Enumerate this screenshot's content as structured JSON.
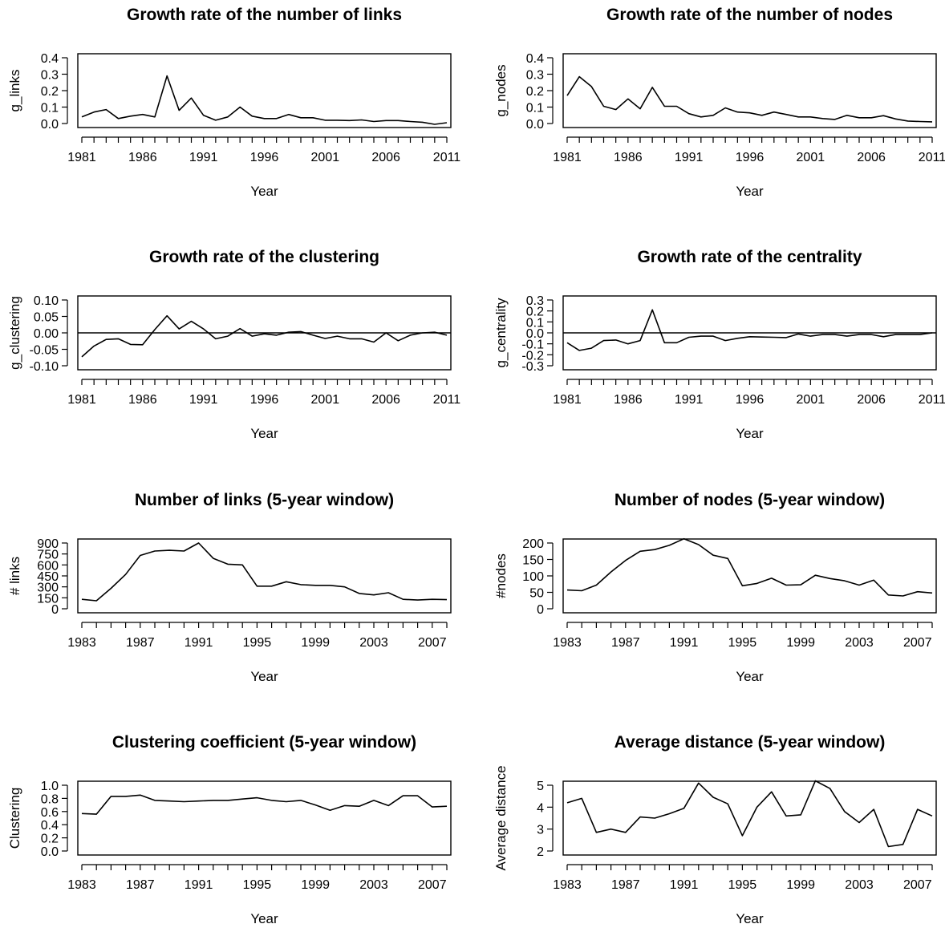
{
  "colors": {
    "line": "#000000",
    "background": "#ffffff"
  },
  "chart_data": [
    {
      "type": "line",
      "title": "Growth rate of the number of links",
      "xlabel": "Year",
      "ylabel": "g_links",
      "x": [
        1981,
        1982,
        1983,
        1984,
        1985,
        1986,
        1987,
        1988,
        1989,
        1990,
        1991,
        1992,
        1993,
        1994,
        1995,
        1996,
        1997,
        1998,
        1999,
        2000,
        2001,
        2002,
        2003,
        2004,
        2005,
        2006,
        2007,
        2008,
        2009,
        2010,
        2011
      ],
      "values": [
        0.04,
        0.07,
        0.085,
        0.03,
        0.045,
        0.055,
        0.04,
        0.29,
        0.08,
        0.155,
        0.05,
        0.02,
        0.04,
        0.1,
        0.045,
        0.03,
        0.03,
        0.055,
        0.035,
        0.035,
        0.02,
        0.02,
        0.018,
        0.022,
        0.012,
        0.018,
        0.018,
        0.012,
        0.008,
        -0.005,
        0.005
      ],
      "xlim": [
        1981,
        2011
      ],
      "ylim": [
        0.0,
        0.4
      ],
      "xticks": [
        "1981",
        "1986",
        "1991",
        "1996",
        "2001",
        "2006",
        "2011"
      ],
      "xtick_values": [
        1981,
        1986,
        1991,
        1996,
        2001,
        2006,
        2011
      ],
      "yticks": [
        "0.0",
        "0.1",
        "0.2",
        "0.3",
        "0.4"
      ],
      "ytick_values": [
        0.0,
        0.1,
        0.2,
        0.3,
        0.4
      ],
      "zero_line": false,
      "grid": false
    },
    {
      "type": "line",
      "title": "Growth rate of the number of nodes",
      "xlabel": "Year",
      "ylabel": "g_nodes",
      "x": [
        1981,
        1982,
        1983,
        1984,
        1985,
        1986,
        1987,
        1988,
        1989,
        1990,
        1991,
        1992,
        1993,
        1994,
        1995,
        1996,
        1997,
        1998,
        1999,
        2000,
        2001,
        2002,
        2003,
        2004,
        2005,
        2006,
        2007,
        2008,
        2009,
        2010,
        2011
      ],
      "values": [
        0.17,
        0.285,
        0.225,
        0.105,
        0.085,
        0.15,
        0.09,
        0.22,
        0.105,
        0.105,
        0.06,
        0.04,
        0.05,
        0.095,
        0.07,
        0.065,
        0.05,
        0.07,
        0.055,
        0.04,
        0.04,
        0.03,
        0.025,
        0.05,
        0.035,
        0.035,
        0.048,
        0.028,
        0.015,
        0.012,
        0.01
      ],
      "xlim": [
        1981,
        2011
      ],
      "ylim": [
        0.0,
        0.4
      ],
      "xticks": [
        "1981",
        "1986",
        "1991",
        "1996",
        "2001",
        "2006",
        "2011"
      ],
      "xtick_values": [
        1981,
        1986,
        1991,
        1996,
        2001,
        2006,
        2011
      ],
      "yticks": [
        "0.0",
        "0.1",
        "0.2",
        "0.3",
        "0.4"
      ],
      "ytick_values": [
        0.0,
        0.1,
        0.2,
        0.3,
        0.4
      ],
      "zero_line": false,
      "grid": false
    },
    {
      "type": "line",
      "title": "Growth rate of the clustering",
      "xlabel": "Year",
      "ylabel": "g_clustering",
      "x": [
        1981,
        1982,
        1983,
        1984,
        1985,
        1986,
        1987,
        1988,
        1989,
        1990,
        1991,
        1992,
        1993,
        1994,
        1995,
        1996,
        1997,
        1998,
        1999,
        2000,
        2001,
        2002,
        2003,
        2004,
        2005,
        2006,
        2007,
        2008,
        2009,
        2010,
        2011
      ],
      "values": [
        -0.073,
        -0.04,
        -0.02,
        -0.018,
        -0.035,
        -0.036,
        0.01,
        0.052,
        0.012,
        0.035,
        0.012,
        -0.018,
        -0.01,
        0.013,
        -0.01,
        -0.003,
        -0.007,
        0.002,
        0.004,
        -0.007,
        -0.017,
        -0.01,
        -0.018,
        -0.018,
        -0.028,
        0.0,
        -0.024,
        -0.007,
        0.0,
        0.002,
        -0.007
      ],
      "xlim": [
        1981,
        2011
      ],
      "ylim": [
        -0.1,
        0.1
      ],
      "xticks": [
        "1981",
        "1986",
        "1991",
        "1996",
        "2001",
        "2006",
        "2011"
      ],
      "xtick_values": [
        1981,
        1986,
        1991,
        1996,
        2001,
        2006,
        2011
      ],
      "yticks": [
        "-0.10",
        "-0.05",
        "0.00",
        "0.05",
        "0.10"
      ],
      "ytick_values": [
        -0.1,
        -0.05,
        0.0,
        0.05,
        0.1
      ],
      "zero_line": true,
      "grid": false
    },
    {
      "type": "line",
      "title": "Growth rate of the centrality",
      "xlabel": "Year",
      "ylabel": "g_centrality",
      "x": [
        1981,
        1982,
        1983,
        1984,
        1985,
        1986,
        1987,
        1988,
        1989,
        1990,
        1991,
        1992,
        1993,
        1994,
        1995,
        1996,
        1997,
        1998,
        1999,
        2000,
        2001,
        2002,
        2003,
        2004,
        2005,
        2006,
        2007,
        2008,
        2009,
        2010,
        2011
      ],
      "values": [
        -0.09,
        -0.16,
        -0.14,
        -0.07,
        -0.065,
        -0.1,
        -0.07,
        0.21,
        -0.09,
        -0.09,
        -0.04,
        -0.03,
        -0.03,
        -0.07,
        -0.05,
        -0.035,
        -0.038,
        -0.04,
        -0.043,
        -0.01,
        -0.03,
        -0.015,
        -0.015,
        -0.03,
        -0.015,
        -0.015,
        -0.035,
        -0.015,
        -0.015,
        -0.015,
        0.0
      ],
      "xlim": [
        1981,
        2011
      ],
      "ylim": [
        -0.3,
        0.3
      ],
      "xticks": [
        "1981",
        "1986",
        "1991",
        "1996",
        "2001",
        "2006",
        "2011"
      ],
      "xtick_values": [
        1981,
        1986,
        1991,
        1996,
        2001,
        2006,
        2011
      ],
      "yticks": [
        "-0.3",
        "-0.2",
        "-0.1",
        "0.0",
        "0.1",
        "0.2",
        "0.3"
      ],
      "ytick_values": [
        -0.3,
        -0.2,
        -0.1,
        0.0,
        0.1,
        0.2,
        0.3
      ],
      "zero_line": true,
      "grid": false
    },
    {
      "type": "line",
      "title": "Number of links (5-year window)",
      "xlabel": "Year",
      "ylabel": "# links",
      "x": [
        1983,
        1984,
        1985,
        1986,
        1987,
        1988,
        1989,
        1990,
        1991,
        1992,
        1993,
        1994,
        1995,
        1996,
        1997,
        1998,
        1999,
        2000,
        2001,
        2002,
        2003,
        2004,
        2005,
        2006,
        2007,
        2008
      ],
      "values": [
        130,
        110,
        280,
        470,
        730,
        790,
        800,
        790,
        900,
        690,
        610,
        600,
        310,
        310,
        370,
        330,
        320,
        320,
        300,
        210,
        190,
        220,
        130,
        120,
        130,
        125
      ],
      "xlim": [
        1983,
        2008
      ],
      "ylim": [
        0,
        900
      ],
      "xticks": [
        "1983",
        "1987",
        "1991",
        "1995",
        "1999",
        "2003",
        "2007"
      ],
      "xtick_values": [
        1983,
        1987,
        1991,
        1995,
        1999,
        2003,
        2007
      ],
      "yticks": [
        "0",
        "150",
        "300",
        "450",
        "600",
        "750",
        "900"
      ],
      "ytick_values": [
        0,
        150,
        300,
        450,
        600,
        750,
        900
      ],
      "zero_line": false,
      "grid": false
    },
    {
      "type": "line",
      "title": "Number of nodes (5-year window)",
      "xlabel": "Year",
      "ylabel": "#nodes",
      "x": [
        1983,
        1984,
        1985,
        1986,
        1987,
        1988,
        1989,
        1990,
        1991,
        1992,
        1993,
        1994,
        1995,
        1996,
        1997,
        1998,
        1999,
        2000,
        2001,
        2002,
        2003,
        2004,
        2005,
        2006,
        2007,
        2008
      ],
      "values": [
        57,
        55,
        72,
        112,
        147,
        175,
        180,
        193,
        213,
        195,
        163,
        153,
        70,
        77,
        93,
        72,
        73,
        102,
        92,
        85,
        72,
        87,
        42,
        39,
        52,
        48
      ],
      "xlim": [
        1983,
        2008
      ],
      "ylim": [
        0,
        200
      ],
      "xticks": [
        "1983",
        "1987",
        "1991",
        "1995",
        "1999",
        "2003",
        "2007"
      ],
      "xtick_values": [
        1983,
        1987,
        1991,
        1995,
        1999,
        2003,
        2007
      ],
      "yticks": [
        "0",
        "50",
        "100",
        "150",
        "200"
      ],
      "ytick_values": [
        0,
        50,
        100,
        150,
        200
      ],
      "zero_line": false,
      "grid": false
    },
    {
      "type": "line",
      "title": "Clustering coefficient (5-year window)",
      "xlabel": "Year",
      "ylabel": "Clustering",
      "x": [
        1983,
        1984,
        1985,
        1986,
        1987,
        1988,
        1989,
        1990,
        1991,
        1992,
        1993,
        1994,
        1995,
        1996,
        1997,
        1998,
        1999,
        2000,
        2001,
        2002,
        2003,
        2004,
        2005,
        2006,
        2007,
        2008
      ],
      "values": [
        0.57,
        0.56,
        0.83,
        0.83,
        0.85,
        0.77,
        0.76,
        0.75,
        0.76,
        0.77,
        0.77,
        0.79,
        0.81,
        0.77,
        0.75,
        0.77,
        0.7,
        0.62,
        0.69,
        0.68,
        0.77,
        0.69,
        0.84,
        0.84,
        0.67,
        0.68
      ],
      "xlim": [
        1983,
        2008
      ],
      "ylim": [
        0.0,
        1.0
      ],
      "xticks": [
        "1983",
        "1987",
        "1991",
        "1995",
        "1999",
        "2003",
        "2007"
      ],
      "xtick_values": [
        1983,
        1987,
        1991,
        1995,
        1999,
        2003,
        2007
      ],
      "yticks": [
        "0.0",
        "0.2",
        "0.4",
        "0.6",
        "0.8",
        "1.0"
      ],
      "ytick_values": [
        0.0,
        0.2,
        0.4,
        0.6,
        0.8,
        1.0
      ],
      "zero_line": false,
      "grid": false
    },
    {
      "type": "line",
      "title": "Average distance (5-year window)",
      "xlabel": "Year",
      "ylabel": "Average distance",
      "x": [
        1983,
        1984,
        1985,
        1986,
        1987,
        1988,
        1989,
        1990,
        1991,
        1992,
        1993,
        1994,
        1995,
        1996,
        1997,
        1998,
        1999,
        2000,
        2001,
        2002,
        2003,
        2004,
        2005,
        2006,
        2007,
        2008
      ],
      "values": [
        4.2,
        4.4,
        2.85,
        3.0,
        2.85,
        3.55,
        3.5,
        3.7,
        3.95,
        5.1,
        4.45,
        4.15,
        2.7,
        4.0,
        4.7,
        3.6,
        3.65,
        5.2,
        4.85,
        3.8,
        3.3,
        3.9,
        2.2,
        2.3,
        3.9,
        3.6
      ],
      "xlim": [
        1983,
        2008
      ],
      "ylim": [
        2,
        5
      ],
      "xticks": [
        "1983",
        "1987",
        "1991",
        "1995",
        "1999",
        "2003",
        "2007"
      ],
      "xtick_values": [
        1983,
        1987,
        1991,
        1995,
        1999,
        2003,
        2007
      ],
      "yticks": [
        "2",
        "3",
        "4",
        "5"
      ],
      "ytick_values": [
        2,
        3,
        4,
        5
      ],
      "zero_line": false,
      "grid": false
    }
  ]
}
